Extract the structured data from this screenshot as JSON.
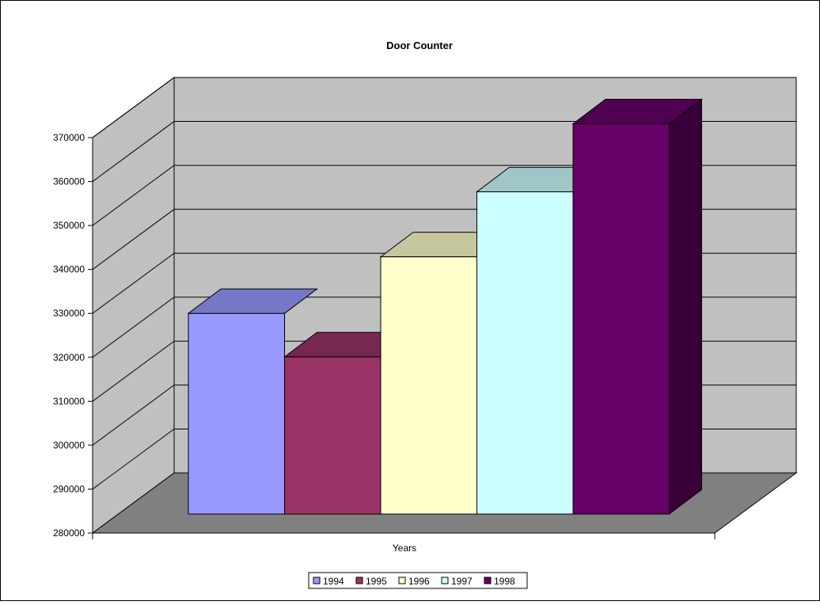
{
  "chart_data": {
    "type": "bar",
    "title": "Door Counter",
    "xlabel": "Years",
    "ylabel": "",
    "categories": [
      ""
    ],
    "series": [
      {
        "name": "1994",
        "values": [
          325700
        ],
        "color": "#9999ff"
      },
      {
        "name": "1995",
        "values": [
          315800
        ],
        "color": "#993366"
      },
      {
        "name": "1996",
        "values": [
          338600
        ],
        "color": "#ffffcc"
      },
      {
        "name": "1997",
        "values": [
          353400
        ],
        "color": "#ccffff"
      },
      {
        "name": "1998",
        "values": [
          368900
        ],
        "color": "#660066"
      }
    ],
    "ylim": [
      280000,
      370000
    ],
    "yticks": [
      "280000",
      "290000",
      "300000",
      "310000",
      "320000",
      "330000",
      "340000",
      "350000",
      "360000",
      "370000"
    ],
    "grid": true,
    "three_d": true,
    "legend_position": "bottom",
    "colors": {
      "wall": "#c0c0c0",
      "floor": "#808080"
    }
  }
}
